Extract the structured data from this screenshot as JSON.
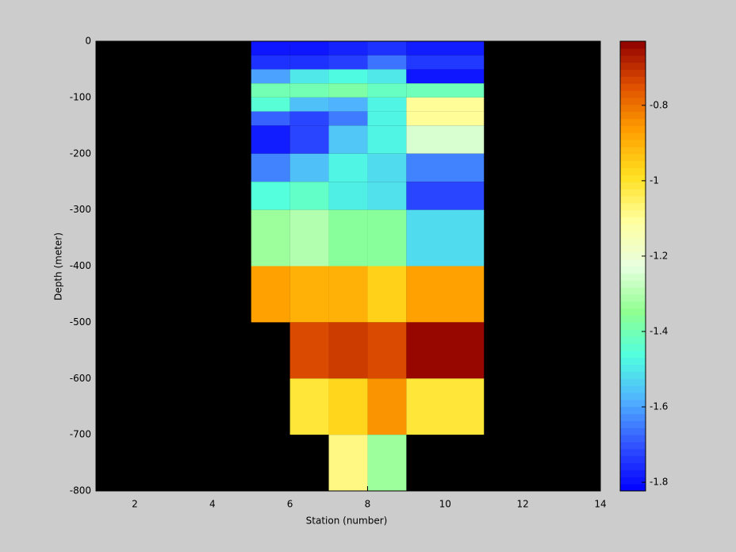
{
  "chart_data": {
    "type": "heatmap",
    "xlabel": "Station (number)",
    "ylabel": "Depth (meter)",
    "x_edges": [
      5,
      6,
      7,
      8,
      9,
      11
    ],
    "y_edges": [
      0,
      -25,
      -50,
      -75,
      -100,
      -125,
      -150,
      -200,
      -250,
      -300,
      -400,
      -500,
      -600,
      -700,
      -800
    ],
    "values": [
      [
        -1.79,
        -1.79,
        -1.77,
        -1.75,
        -1.78
      ],
      [
        -1.75,
        -1.75,
        -1.73,
        -1.66,
        -1.74
      ],
      [
        -1.6,
        -1.5,
        -1.47,
        -1.5,
        -1.79
      ],
      [
        -1.4,
        -1.4,
        -1.38,
        -1.42,
        -1.41
      ],
      [
        -1.45,
        -1.56,
        -1.58,
        -1.48,
        -1.1
      ],
      [
        -1.68,
        -1.72,
        -1.65,
        -1.48,
        -1.1
      ],
      [
        -1.78,
        -1.72,
        -1.55,
        -1.48,
        -1.25
      ],
      [
        -1.64,
        -1.56,
        -1.48,
        -1.52,
        -1.64
      ],
      [
        -1.46,
        -1.43,
        -1.49,
        -1.51,
        -1.72
      ],
      [
        -1.33,
        -1.3,
        -1.36,
        -1.36,
        -1.52
      ],
      [
        -0.87,
        -0.9,
        -0.9,
        -0.96,
        -0.87
      ],
      [
        null,
        -0.74,
        -0.72,
        -0.74,
        -0.64
      ],
      [
        null,
        -1.01,
        -0.97,
        -0.85,
        -1.01
      ],
      [
        null,
        null,
        -1.08,
        -1.33,
        null
      ]
    ],
    "xlim": [
      1,
      14
    ],
    "xticks": [
      2,
      4,
      6,
      8,
      10,
      12,
      14
    ],
    "ylim": [
      -800,
      0
    ],
    "yticks": [
      -800,
      -700,
      -600,
      -500,
      -400,
      -300,
      -200,
      -100,
      0
    ],
    "clim": [
      -1.823,
      -0.63
    ],
    "cticks": [
      -1.8,
      -1.6,
      -1.4,
      -1.2,
      -1,
      -0.8
    ],
    "background": "#000000",
    "colormap": [
      "#0000ff",
      "#3050ff",
      "#50b0ff",
      "#50ffe0",
      "#90ff90",
      "#e8ffe0",
      "#ffffa0",
      "#ffe020",
      "#ffa000",
      "#e05000",
      "#900000"
    ]
  }
}
